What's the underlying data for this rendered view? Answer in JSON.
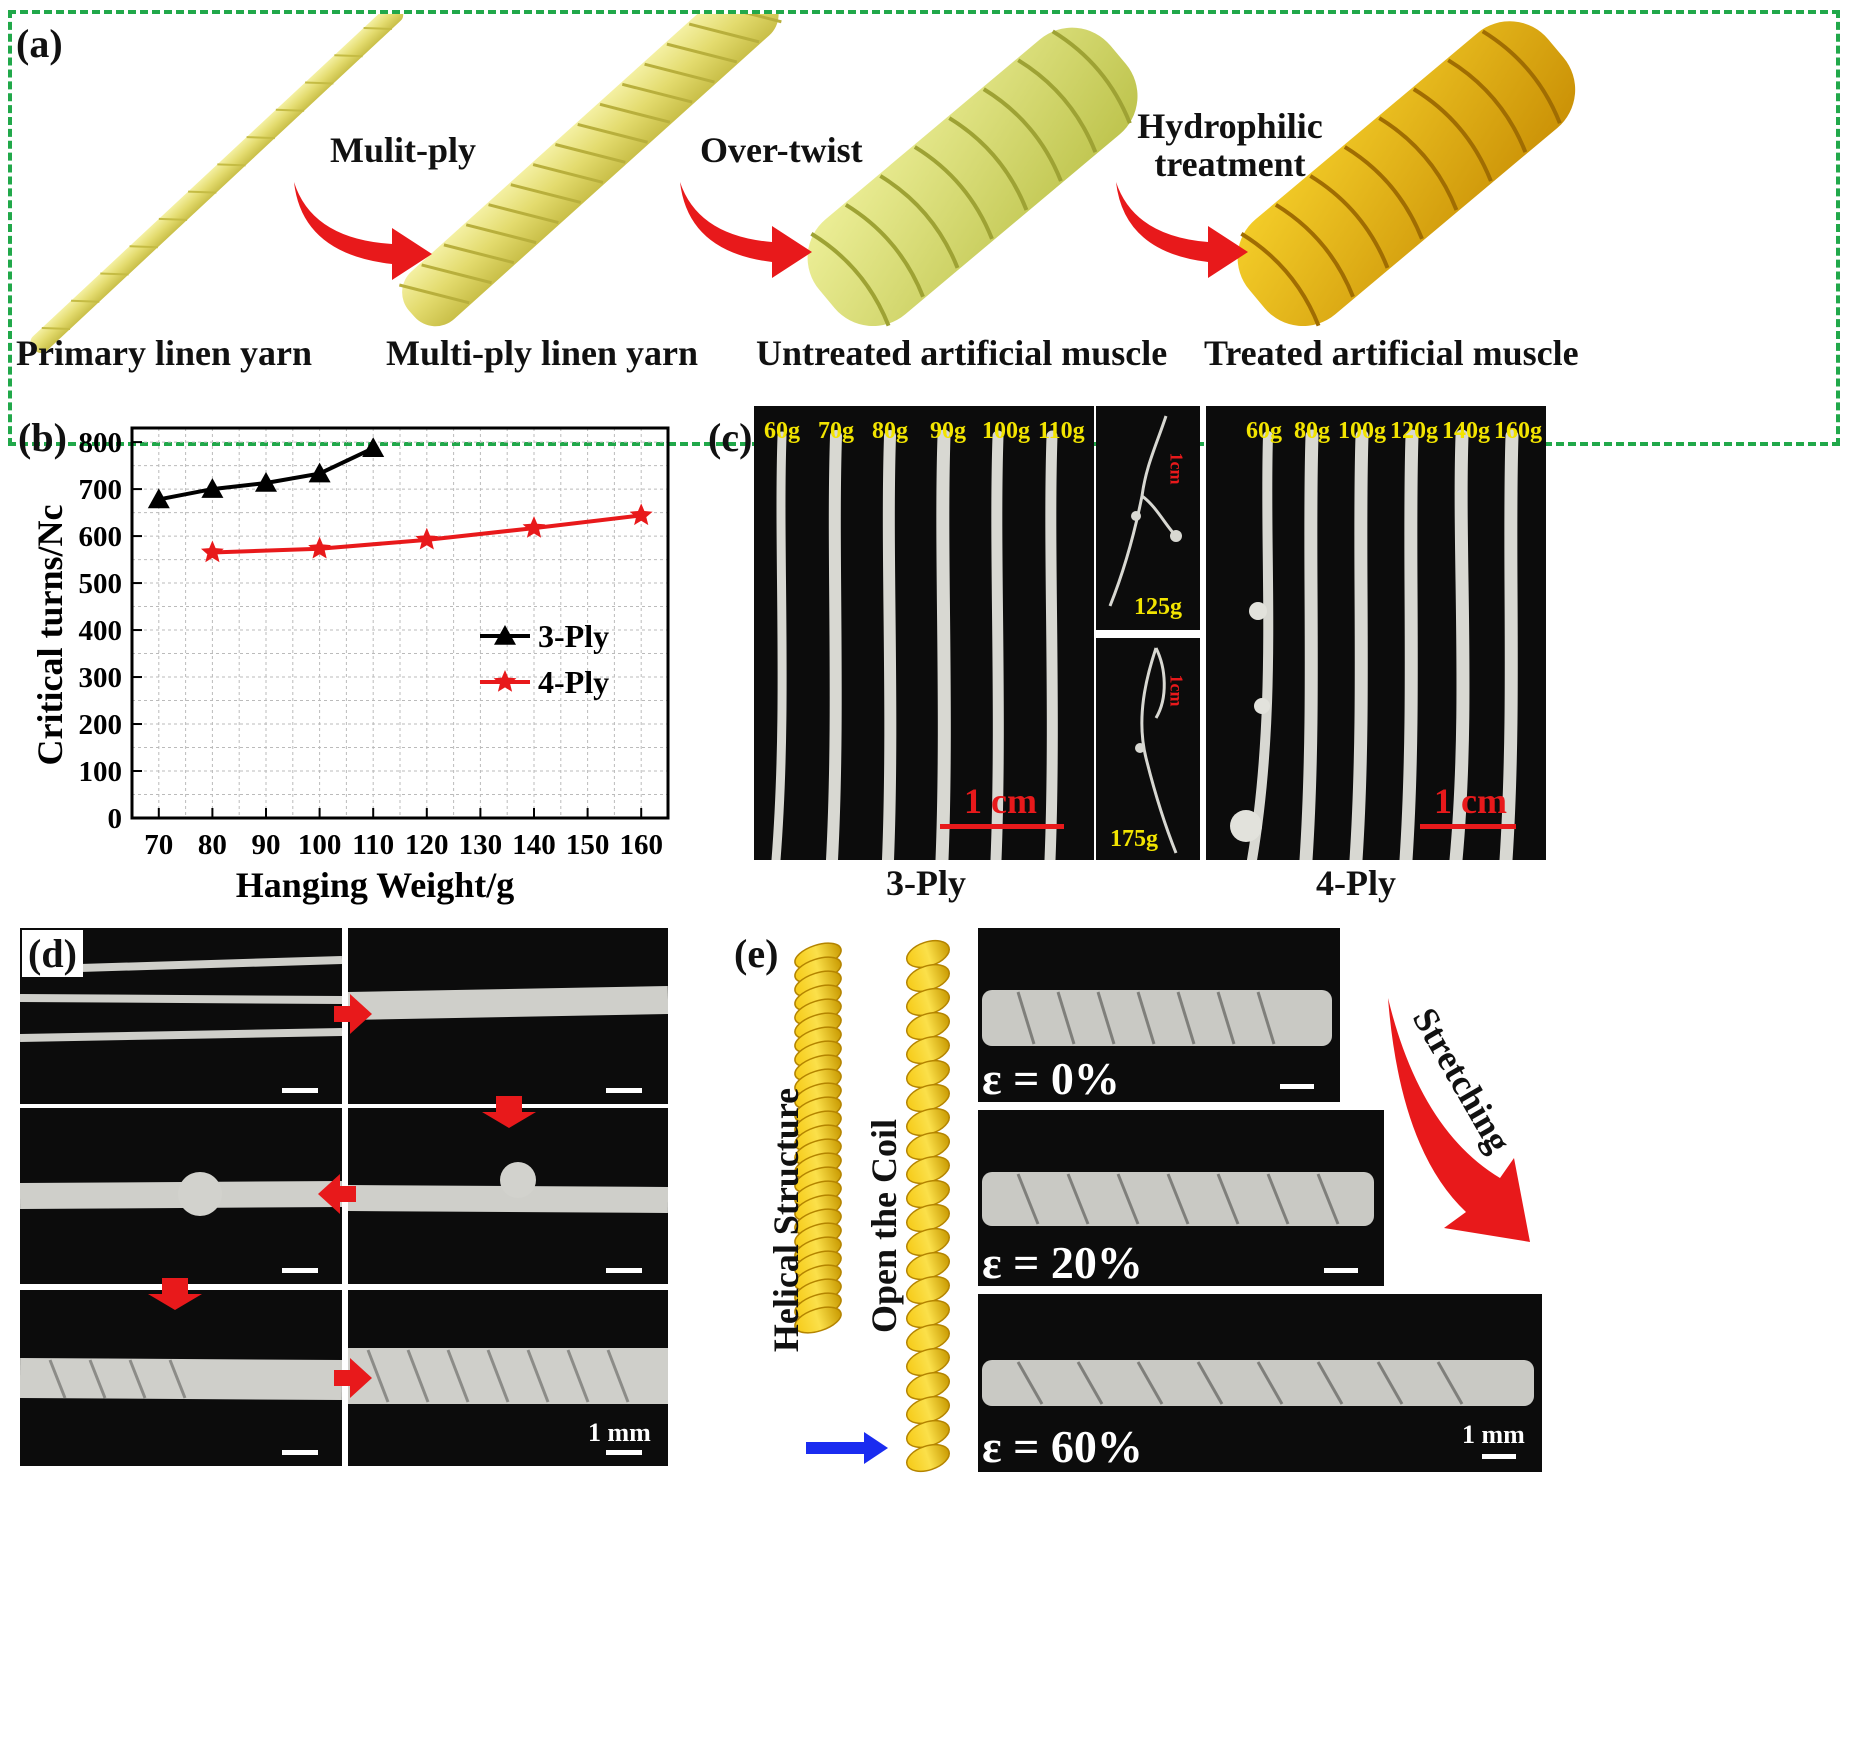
{
  "panel_a": {
    "label": "(a)",
    "stages": [
      "Primary linen yarn",
      "Multi-ply linen yarn",
      "Untreated artificial muscle",
      "Treated artificial muscle"
    ],
    "arrows": [
      "Mulit-ply",
      "Over-twist",
      "Hydrophilic treatment"
    ],
    "border_color": "#21a84a"
  },
  "panel_b": {
    "label": "(b)"
  },
  "chart_data": {
    "type": "line",
    "xlabel": "Hanging Weight/g",
    "ylabel": "Critical turns/Nc",
    "xlim": [
      65,
      165
    ],
    "ylim": [
      0,
      830
    ],
    "xticks": [
      70,
      80,
      90,
      100,
      110,
      120,
      130,
      140,
      150,
      160
    ],
    "yticks": [
      0,
      100,
      200,
      300,
      400,
      500,
      600,
      700,
      800
    ],
    "grid": true,
    "legend_position": "center-right",
    "series": [
      {
        "name": "3-Ply",
        "marker": "triangle",
        "color": "#000000",
        "x": [
          70,
          80,
          90,
          100,
          110
        ],
        "y": [
          678,
          700,
          713,
          733,
          787
        ]
      },
      {
        "name": "4-Ply",
        "marker": "star",
        "color": "#e8191b",
        "x": [
          80,
          100,
          120,
          140,
          160
        ],
        "y": [
          565,
          573,
          592,
          617,
          644
        ]
      }
    ]
  },
  "panel_c": {
    "label": "(c)",
    "ply3_weights": [
      "60g",
      "70g",
      "80g",
      "90g",
      "100g",
      "110g"
    ],
    "ply4_weights": [
      "60g",
      "80g",
      "100g",
      "120g",
      "140g",
      "160g"
    ],
    "inset_top_weight": "125g",
    "inset_bottom_weight": "175g",
    "inset_scale": "1cm",
    "scale": "1 cm",
    "caption_left": "3-Ply",
    "caption_right": "4-Ply"
  },
  "panel_d": {
    "label": "(d)",
    "scale": "1 mm"
  },
  "panel_e": {
    "label": "(e)",
    "left_text": "Helical Structure",
    "right_text": "Open the Coil",
    "stretch_text": "Stretching",
    "strains": [
      "ε = 0%",
      "ε = 20%",
      "ε = 60%"
    ],
    "scale": "1 mm"
  }
}
